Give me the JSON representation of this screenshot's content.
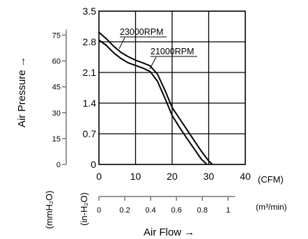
{
  "chart_data": {
    "type": "line",
    "x_unit": "(CFM)",
    "x2_unit": "(m³/min)",
    "ylabel": "Air Pressure →",
    "xlabel": "Air Flow →",
    "y_unit_inh2o": "(in-H₂O)",
    "y_unit_mmh2o": "(mmH₂O)",
    "xlim": [
      0,
      40
    ],
    "ylim": [
      0,
      3.5
    ],
    "grid": true,
    "x_ticks": [
      "0",
      "10",
      "20",
      "30",
      "40"
    ],
    "y_ticks": [
      "0",
      "0.7",
      "1.4",
      "2.1",
      "2.8",
      "3.5"
    ],
    "y_tick_values": [
      0,
      0.7,
      1.4,
      2.1,
      2.8,
      3.5
    ],
    "y2_ticks": [
      "0",
      "15",
      "30",
      "45",
      "60",
      "75"
    ],
    "y2_tick_values": [
      0,
      15,
      30,
      45,
      60,
      75
    ],
    "x2_ticks": [
      "0",
      "0.2",
      "0.4",
      "0.6",
      "0.8",
      "1"
    ],
    "x2_tick_values": [
      0,
      0.2,
      0.4,
      0.6,
      0.8,
      1.0
    ],
    "series": [
      {
        "name": "23000RPM",
        "x": [
          0,
          2,
          4,
          6,
          8,
          10,
          12,
          14,
          16,
          18,
          20,
          22,
          24,
          26,
          28,
          30,
          31
        ],
        "y": [
          3.02,
          2.87,
          2.7,
          2.56,
          2.46,
          2.38,
          2.32,
          2.25,
          2.06,
          1.7,
          1.3,
          1.05,
          0.8,
          0.55,
          0.3,
          0.08,
          0
        ]
      },
      {
        "name": "21000RPM",
        "x": [
          0,
          2,
          4,
          6,
          8,
          10,
          12,
          14,
          16,
          18,
          20,
          22,
          24,
          26,
          28,
          29.5
        ],
        "y": [
          2.84,
          2.72,
          2.55,
          2.42,
          2.32,
          2.26,
          2.2,
          2.12,
          1.9,
          1.52,
          1.12,
          0.85,
          0.6,
          0.36,
          0.12,
          0
        ]
      }
    ]
  }
}
